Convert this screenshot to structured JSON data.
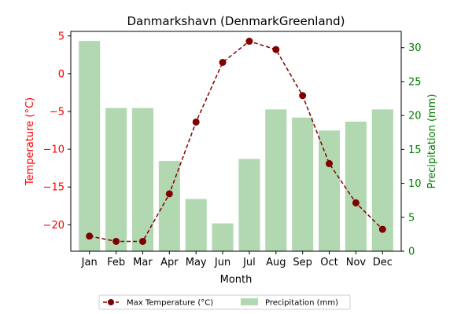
{
  "chart_data": {
    "type": "bar",
    "title": "Danmarkshavn (DenmarkGreenland)",
    "xlabel": "Month",
    "categories": [
      "Jan",
      "Feb",
      "Mar",
      "Apr",
      "May",
      "Jun",
      "Jul",
      "Aug",
      "Sep",
      "Oct",
      "Nov",
      "Dec"
    ],
    "y_left": {
      "label": "Temperature (°C)",
      "ylim": [
        -23.5,
        5.6
      ],
      "ticks": [
        5,
        0,
        -5,
        -10,
        -15,
        -20
      ],
      "color": "#ff0000"
    },
    "y_right": {
      "label": "Precipitation (mm)",
      "ylim": [
        0,
        32.4
      ],
      "ticks": [
        0,
        5,
        10,
        15,
        20,
        25,
        30
      ],
      "color": "#008000"
    },
    "series": [
      {
        "name": "Max Temperature (°C)",
        "type": "line",
        "axis": "left",
        "color": "#800000",
        "line_style": "dashed",
        "marker": "circle",
        "values": [
          -21.5,
          -22.2,
          -22.2,
          -15.9,
          -6.4,
          1.5,
          4.3,
          3.2,
          -2.9,
          -11.9,
          -17.1,
          -20.6
        ]
      },
      {
        "name": "Precipitation (mm)",
        "type": "bar",
        "axis": "right",
        "color": "#b2d8b2",
        "values": [
          31.0,
          21.1,
          21.1,
          13.3,
          7.7,
          4.1,
          13.6,
          20.9,
          19.7,
          17.8,
          19.1,
          20.9
        ]
      }
    ],
    "legend_placement": "bottom-center",
    "grid": false
  }
}
